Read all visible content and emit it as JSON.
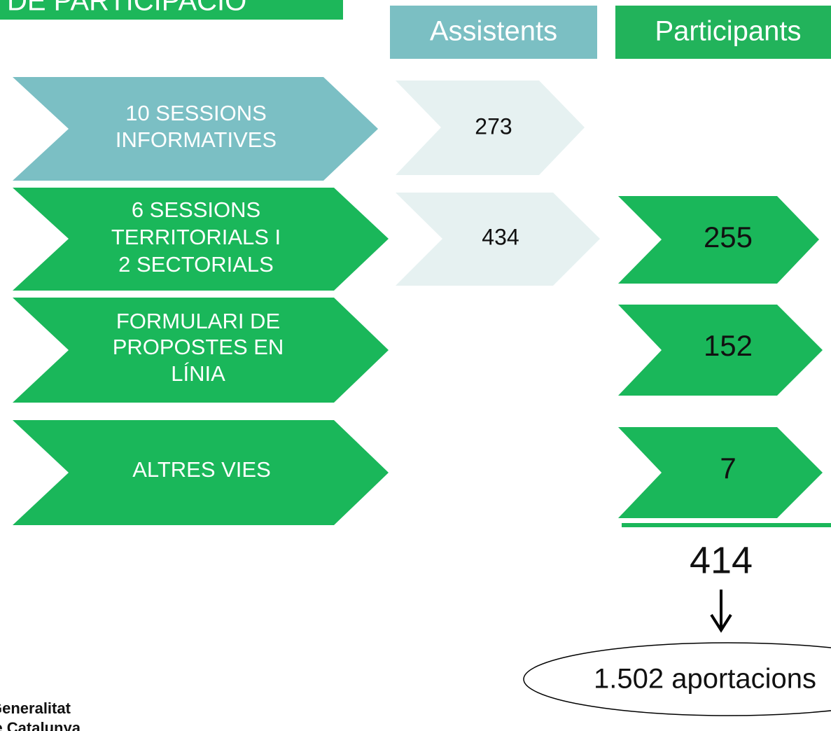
{
  "header": {
    "title": "DE PARTICIPACIÓ"
  },
  "columns": {
    "attendees": "Assistents",
    "participants": "Participants"
  },
  "rows": [
    {
      "label": [
        "10 SESSIONS",
        "INFORMATIVES"
      ],
      "attendees": "273"
    },
    {
      "label": [
        "6 SESSIONS",
        "TERRITORIALS I",
        "2 SECTORIALS"
      ],
      "attendees": "434",
      "participants": "255"
    },
    {
      "label": [
        "FORMULARI DE",
        "PROPOSTES EN",
        "LÍNIA"
      ],
      "participants": "152"
    },
    {
      "label": [
        "ALTRES VIES"
      ],
      "participants": "7"
    }
  ],
  "total": "414",
  "contributions": "1.502 aportacions",
  "logo": [
    "Generalitat",
    "de Catalunya"
  ]
}
